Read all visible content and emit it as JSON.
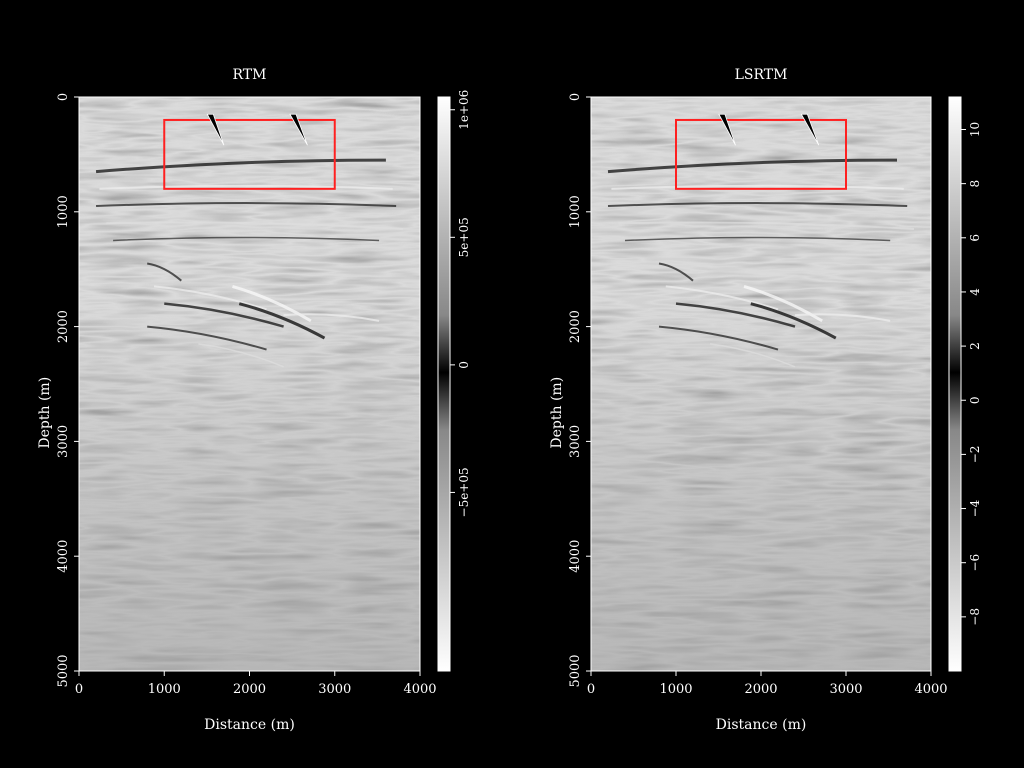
{
  "chart_data": [
    {
      "type": "heatmap",
      "title": "RTM",
      "xlabel": "Distance (m)",
      "ylabel": "Depth (m)",
      "xlim": [
        0,
        4000
      ],
      "ylim": [
        5000,
        0
      ],
      "x_ticks": [
        "0",
        "1000",
        "2000",
        "3000",
        "4000"
      ],
      "y_ticks": [
        "0",
        "1000",
        "2000",
        "3000",
        "4000",
        "5000"
      ],
      "colormap": "gray",
      "colorbar": {
        "range": [
          -1200000,
          1050000
        ],
        "ticks": [
          {
            "value": 1000000,
            "label": "1e+06"
          },
          {
            "value": 500000,
            "label": "5e+05"
          },
          {
            "value": 0,
            "label": "0"
          },
          {
            "value": -500000,
            "label": "−5e+05"
          }
        ]
      },
      "highlight_box": {
        "x": [
          1000,
          3000
        ],
        "y": [
          200,
          800
        ],
        "color": "#ff2020"
      },
      "arrows": [
        {
          "tip": [
            1700,
            420
          ],
          "tail": [
            1540,
            150
          ]
        },
        {
          "tip": [
            2680,
            420
          ],
          "tail": [
            2510,
            150
          ]
        }
      ]
    },
    {
      "type": "heatmap",
      "title": "LSRTM",
      "xlabel": "Distance (m)",
      "ylabel": "Depth (m)",
      "xlim": [
        0,
        4000
      ],
      "ylim": [
        5000,
        0
      ],
      "x_ticks": [
        "0",
        "1000",
        "2000",
        "3000",
        "4000"
      ],
      "y_ticks": [
        "0",
        "1000",
        "2000",
        "3000",
        "4000",
        "5000"
      ],
      "colormap": "gray",
      "colorbar": {
        "range": [
          -10,
          11.2
        ],
        "ticks": [
          {
            "value": 10,
            "label": "10"
          },
          {
            "value": 8,
            "label": "8"
          },
          {
            "value": 6,
            "label": "6"
          },
          {
            "value": 4,
            "label": "4"
          },
          {
            "value": 2,
            "label": "2"
          },
          {
            "value": 0,
            "label": "0"
          },
          {
            "value": -2,
            "label": "−2"
          },
          {
            "value": -4,
            "label": "−4"
          },
          {
            "value": -6,
            "label": "−6"
          },
          {
            "value": -8,
            "label": "−8"
          }
        ]
      },
      "highlight_box": {
        "x": [
          1000,
          3000
        ],
        "y": [
          200,
          800
        ],
        "color": "#ff2020"
      },
      "arrows": [
        {
          "tip": [
            1700,
            420
          ],
          "tail": [
            1540,
            150
          ]
        },
        {
          "tip": [
            2680,
            420
          ],
          "tail": [
            2510,
            150
          ]
        }
      ]
    }
  ]
}
